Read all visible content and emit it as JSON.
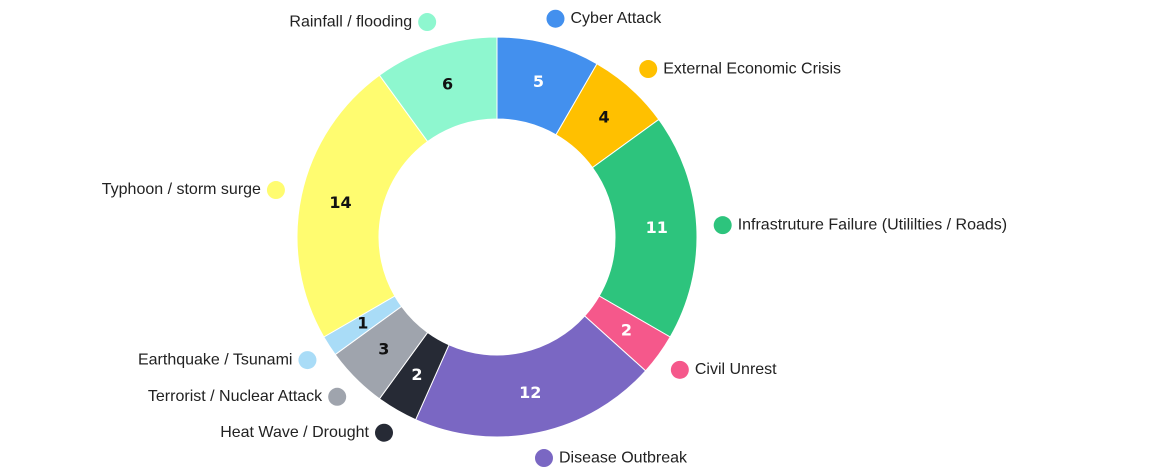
{
  "chart_data": {
    "type": "donut",
    "categories": [
      "Cyber Attack",
      "External Economic Crisis",
      "Infrastruture Failure (Utililties / Roads)",
      "Civil Unrest",
      "Disease Outbreak",
      "Heat Wave / Drought",
      "Terrorist / Nuclear Attack",
      "Earthquake / Tsunami",
      "Typhoon / storm surge",
      "Rainfall / flooding"
    ],
    "values": [
      5,
      4,
      11,
      2,
      12,
      2,
      3,
      1,
      14,
      6
    ],
    "colors": [
      "#4390ee",
      "#ffc000",
      "#2dc47d",
      "#f5588b",
      "#7a67c3",
      "#262a35",
      "#9fa4ad",
      "#a9dcf7",
      "#fffc70",
      "#8ef7cf"
    ]
  }
}
